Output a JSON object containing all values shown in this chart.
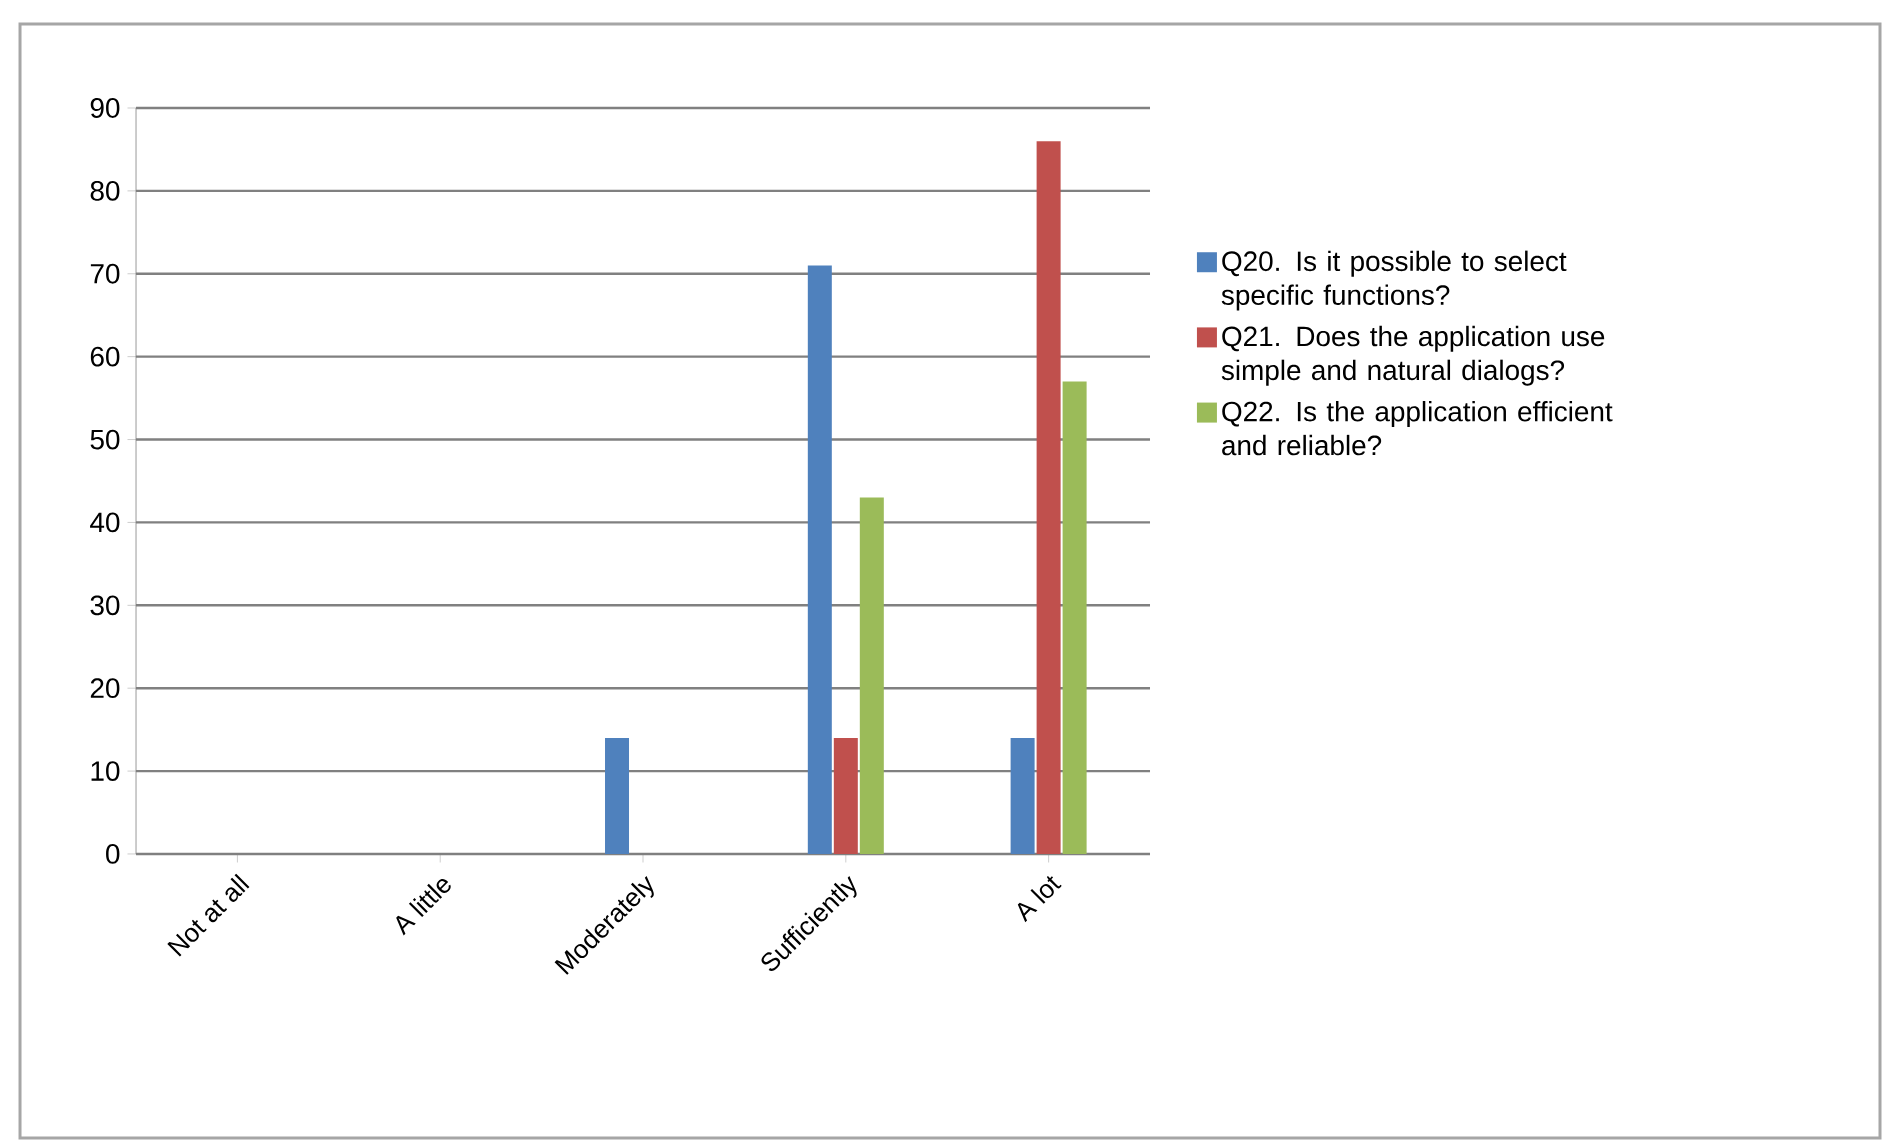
{
  "chart_data": {
    "type": "bar",
    "categories": [
      "Not at all",
      "A little",
      "Moderately",
      "Sufficiently",
      "A lot"
    ],
    "series": [
      {
        "name": "Q20. Is it possible to select specific functions?",
        "color": "#4f81bd",
        "values": [
          0,
          0,
          14,
          71,
          14
        ]
      },
      {
        "name": "Q21.  Does the application use simple and natural dialogs?",
        "color": "#c0504d",
        "values": [
          0,
          0,
          0,
          14,
          86
        ]
      },
      {
        "name": "Q22. Is the application efficient and reliable?",
        "color": "#9bbb59",
        "values": [
          0,
          0,
          0,
          43,
          57
        ]
      }
    ],
    "ylim": [
      0,
      90
    ],
    "yticks": [
      0,
      10,
      20,
      30,
      40,
      50,
      60,
      70,
      80,
      90
    ],
    "grid": "y",
    "legend": "right"
  }
}
